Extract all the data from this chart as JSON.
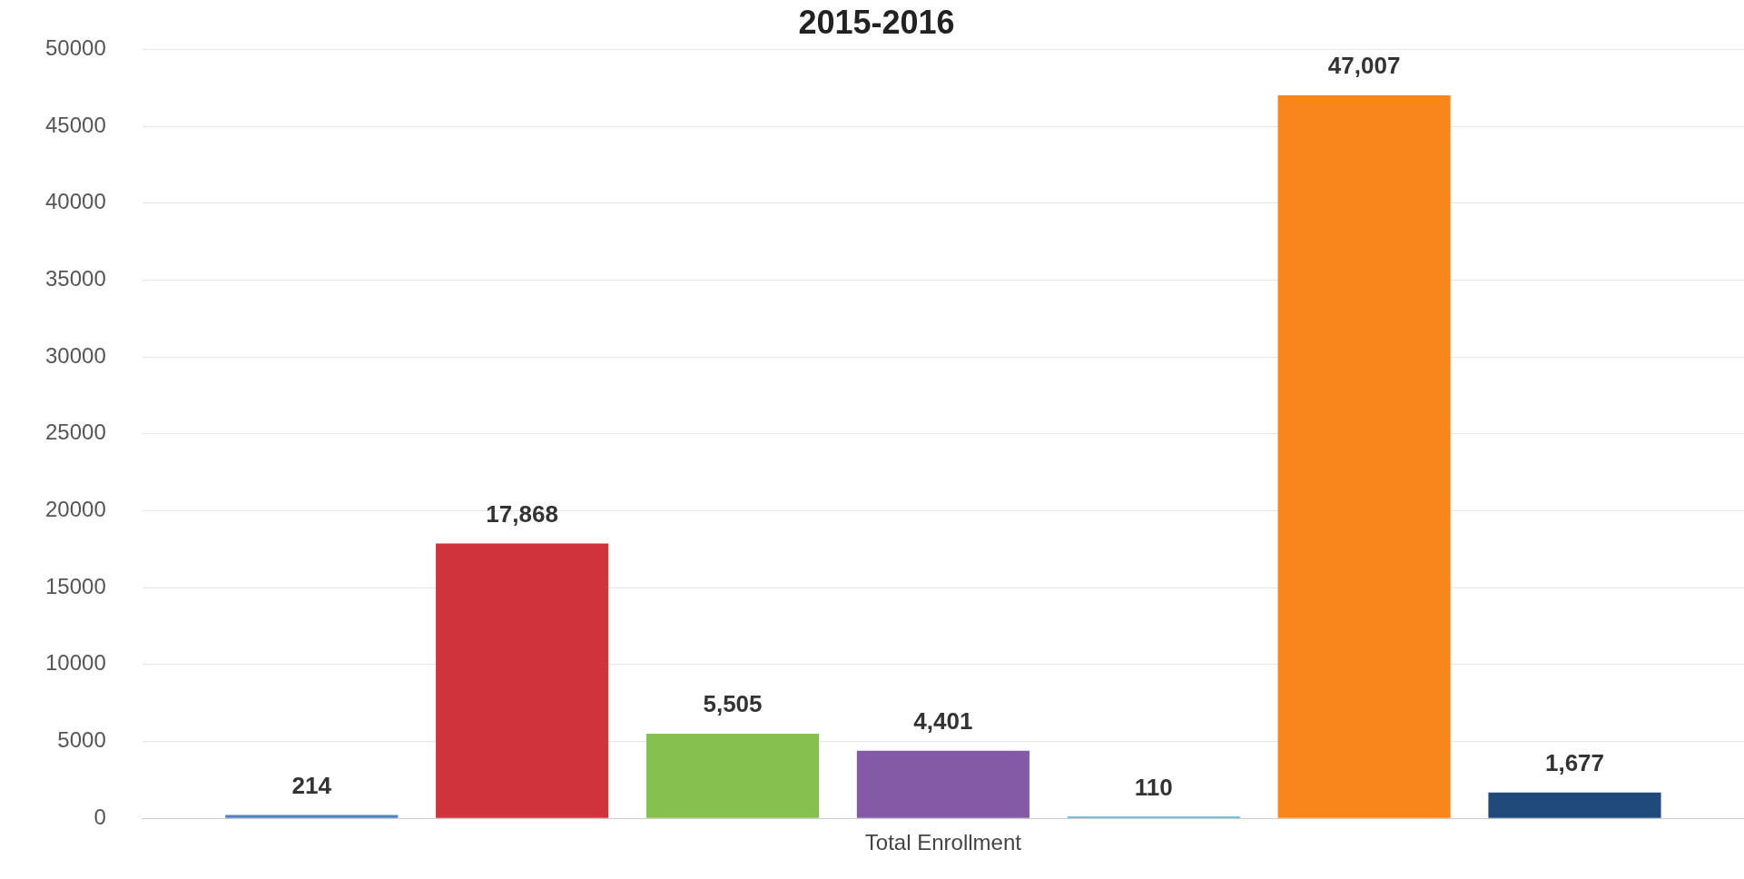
{
  "chart_data": {
    "type": "bar",
    "title": "2015-2016",
    "xlabel": null,
    "categories": [
      "Total Enrollment"
    ],
    "series": [
      {
        "color": "#4f81bd",
        "values": [
          214
        ],
        "value_labels": [
          "214"
        ]
      },
      {
        "color": "#d0343b",
        "values": [
          17868
        ],
        "value_labels": [
          "17,868"
        ]
      },
      {
        "color": "#86c04f",
        "values": [
          5505
        ],
        "value_labels": [
          "5,505"
        ]
      },
      {
        "color": "#8459a6",
        "values": [
          4401
        ],
        "value_labels": [
          "4,401"
        ]
      },
      {
        "color": "#4bacc6",
        "values": [
          110
        ],
        "value_labels": [
          "110"
        ]
      },
      {
        "color": "#f8861a",
        "values": [
          47007
        ],
        "value_labels": [
          "47,007"
        ]
      },
      {
        "color": "#1f4a7a",
        "values": [
          1677
        ],
        "value_labels": [
          "1,677"
        ]
      }
    ],
    "ylim": [
      0,
      50000
    ],
    "yticks": [
      0,
      5000,
      10000,
      15000,
      20000,
      25000,
      30000,
      35000,
      40000,
      45000,
      50000
    ],
    "grid": "y"
  }
}
